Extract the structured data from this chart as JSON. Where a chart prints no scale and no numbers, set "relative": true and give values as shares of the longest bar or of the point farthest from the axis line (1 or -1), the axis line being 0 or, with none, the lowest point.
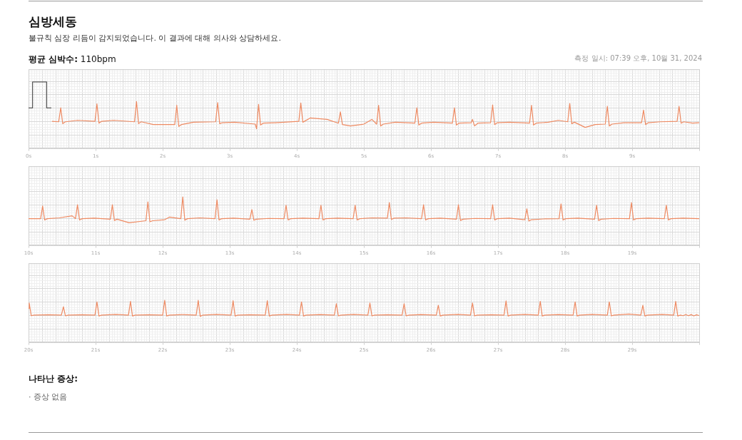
{
  "chart_data": [
    {
      "type": "line",
      "title": "심방세동",
      "subtitle": "불규칙 심장 리듬이 감지되었습니다. 이 결과에 대해 의사와 상담하세요.",
      "annotations": [
        "평균 심박수: 110bpm",
        "측정 일시: 07:39 오후, 10월 31, 2024"
      ],
      "relative": true,
      "grid": true,
      "xlim": [
        0,
        10
      ],
      "xticks": [
        {
          "value": 0,
          "label": "0s"
        },
        {
          "value": 1,
          "label": "1s"
        },
        {
          "value": 2,
          "label": "2s"
        },
        {
          "value": 3,
          "label": "3s"
        },
        {
          "value": 4,
          "label": "4s"
        },
        {
          "value": 5,
          "label": "5s"
        },
        {
          "value": 6,
          "label": "6s"
        },
        {
          "value": 7,
          "label": "7s"
        },
        {
          "value": 8,
          "label": "8s"
        },
        {
          "value": 9,
          "label": "9s"
        },
        {
          "value": 10,
          "label": null
        }
      ],
      "series": [
        {
          "color": "#555555",
          "x": [
            0,
            0.06,
            0.06,
            0.27,
            0.27,
            0.34
          ],
          "values": [
            0.445,
            0.445,
            1,
            1,
            0.445,
            0.445
          ]
        },
        {
          "color": "#ee8a62",
          "x": [
            0.35,
            0.45,
            0.48,
            0.51,
            0.55,
            0.73,
            0.99,
            1.02,
            1.05,
            1.09,
            1.27,
            1.58,
            1.61,
            1.64,
            1.68,
            1.86,
            2.18,
            2.21,
            2.24,
            2.28,
            2.46,
            2.79,
            2.82,
            2.85,
            2.89,
            3.07,
            3.38,
            3.4,
            3.43,
            3.46,
            3.5,
            3.68,
            4.03,
            4.06,
            4.09,
            4.2,
            4.45,
            4.62,
            4.65,
            4.68,
            4.8,
            5.0,
            5.12,
            5.19,
            5.22,
            5.25,
            5.29,
            5.47,
            5.76,
            5.79,
            5.82,
            5.86,
            6.04,
            6.32,
            6.35,
            6.38,
            6.42,
            6.6,
            6.62,
            6.65,
            6.7,
            6.89,
            6.92,
            6.95,
            6.99,
            7.17,
            7.47,
            7.5,
            7.53,
            7.57,
            7.75,
            7.9,
            8.04,
            8.07,
            8.1,
            8.14,
            8.3,
            8.45,
            8.6,
            8.63,
            8.66,
            8.7,
            8.88,
            9.14,
            9.17,
            9.2,
            9.24,
            9.42,
            9.67,
            9.7,
            9.73,
            9.77,
            9.9,
            10
          ],
          "values": [
            0.16,
            0.15,
            0.45,
            0.11,
            0.15,
            0.18,
            0.16,
            0.53,
            0.12,
            0.16,
            0.18,
            0.15,
            0.58,
            0.11,
            0.15,
            0.09,
            0.09,
            0.5,
            0.05,
            0.09,
            0.14,
            0.15,
            0.56,
            0.11,
            0.13,
            0.14,
            0.1,
            0,
            0.52,
            0.08,
            0.12,
            0.13,
            0.16,
            0.55,
            0.14,
            0.23,
            0.2,
            0.12,
            0.36,
            0.09,
            0.06,
            0.1,
            0.2,
            0.1,
            0.5,
            0.06,
            0.1,
            0.14,
            0.12,
            0.45,
            0.08,
            0.12,
            0.14,
            0.12,
            0.45,
            0.08,
            0.12,
            0.13,
            0.2,
            0.06,
            0.12,
            0.13,
            0.51,
            0.09,
            0.13,
            0.14,
            0.12,
            0.5,
            0.08,
            0.12,
            0.14,
            0.18,
            0.15,
            0.54,
            0.11,
            0.14,
            0.03,
            0.09,
            0.1,
            0.48,
            0.06,
            0.1,
            0.13,
            0.13,
            0.4,
            0.09,
            0.13,
            0.15,
            0.16,
            0.48,
            0.12,
            0.15,
            0.12,
            0.13
          ]
        }
      ]
    },
    {
      "type": "line",
      "relative": true,
      "grid": true,
      "xlim": [
        10,
        20
      ],
      "xticks": [
        {
          "value": 10,
          "label": "10s"
        },
        {
          "value": 11,
          "label": "11s"
        },
        {
          "value": 12,
          "label": "12s"
        },
        {
          "value": 13,
          "label": "13s"
        },
        {
          "value": 14,
          "label": "14s"
        },
        {
          "value": 15,
          "label": "15s"
        },
        {
          "value": 16,
          "label": "16s"
        },
        {
          "value": 17,
          "label": "17s"
        },
        {
          "value": 18,
          "label": "18s"
        },
        {
          "value": 19,
          "label": "19s"
        },
        {
          "value": 20,
          "label": null
        }
      ],
      "series": [
        {
          "color": "#ee8a62",
          "x": [
            10,
            10.18,
            10.21,
            10.24,
            10.28,
            10.46,
            10.65,
            10.7,
            10.73,
            10.76,
            10.8,
            10.98,
            11.22,
            11.25,
            11.28,
            11.32,
            11.5,
            11.75,
            11.78,
            11.81,
            11.85,
            12.03,
            12.1,
            12.27,
            12.3,
            12.33,
            12.37,
            12.55,
            12.78,
            12.81,
            12.84,
            12.88,
            13.06,
            13.3,
            13.33,
            13.36,
            13.4,
            13.58,
            13.81,
            13.84,
            13.87,
            13.91,
            14.09,
            14.33,
            14.36,
            14.39,
            14.43,
            14.61,
            14.84,
            14.87,
            14.9,
            14.94,
            15.12,
            15.35,
            15.38,
            15.41,
            15.45,
            15.63,
            15.86,
            15.89,
            15.92,
            15.96,
            16.14,
            16.38,
            16.41,
            16.44,
            16.48,
            16.66,
            16.89,
            16.92,
            16.95,
            16.99,
            17.17,
            17.4,
            17.43,
            17.46,
            17.5,
            17.68,
            17.91,
            17.94,
            17.97,
            18.01,
            18.19,
            18.44,
            18.47,
            18.5,
            18.54,
            18.72,
            18.96,
            18.99,
            19.02,
            19.06,
            19.24,
            19.48,
            19.51,
            19.54,
            19.58,
            19.76,
            20
          ],
          "values": [
            0.16,
            0.16,
            0.65,
            0.11,
            0.16,
            0.19,
            0.27,
            0.16,
            0.7,
            0.11,
            0.16,
            0.18,
            0.14,
            0.7,
            0.09,
            0.14,
            0,
            0.08,
            0.81,
            0.04,
            0.08,
            0.12,
            0.22,
            0.16,
            1,
            0.1,
            0.16,
            0.19,
            0.16,
            0.89,
            0.11,
            0.16,
            0.18,
            0.14,
            0.51,
            0.1,
            0.14,
            0.17,
            0.16,
            0.68,
            0.11,
            0.16,
            0.18,
            0.16,
            0.68,
            0.11,
            0.16,
            0.18,
            0.16,
            0.68,
            0.11,
            0.16,
            0.19,
            0.18,
            0.78,
            0.13,
            0.18,
            0.19,
            0.16,
            0.7,
            0.11,
            0.16,
            0.18,
            0.14,
            0.7,
            0.09,
            0.14,
            0.17,
            0.16,
            0.7,
            0.11,
            0.16,
            0.18,
            0.12,
            0.54,
            0.07,
            0.12,
            0.15,
            0.16,
            0.73,
            0.11,
            0.16,
            0.18,
            0.14,
            0.68,
            0.09,
            0.14,
            0.17,
            0.16,
            0.78,
            0.11,
            0.16,
            0.18,
            0.16,
            0.68,
            0.11,
            0.16,
            0.18,
            0.16
          ]
        }
      ]
    },
    {
      "type": "line",
      "relative": true,
      "grid": true,
      "xlim": [
        20,
        30
      ],
      "annotations": [
        "나타난 증상:",
        "· 증상 없음"
      ],
      "xticks": [
        {
          "value": 20,
          "label": "20s"
        },
        {
          "value": 21,
          "label": "21s"
        },
        {
          "value": 22,
          "label": "22s"
        },
        {
          "value": 23,
          "label": "23s"
        },
        {
          "value": 24,
          "label": "24s"
        },
        {
          "value": 25,
          "label": "25s"
        },
        {
          "value": 26,
          "label": "26s"
        },
        {
          "value": 27,
          "label": "27s"
        },
        {
          "value": 28,
          "label": "28s"
        },
        {
          "value": 29,
          "label": "29s"
        },
        {
          "value": 30,
          "label": null
        }
      ],
      "series": [
        {
          "color": "#ee8a62",
          "x": [
            20,
            20.01,
            20.04,
            20.08,
            20.3,
            20.49,
            20.52,
            20.55,
            20.59,
            20.8,
            20.99,
            21.02,
            21.05,
            21.09,
            21.3,
            21.49,
            21.52,
            21.55,
            21.59,
            21.8,
            22.0,
            22.03,
            22.06,
            22.1,
            22.3,
            22.5,
            22.53,
            22.56,
            22.6,
            22.8,
            23.02,
            23.05,
            23.08,
            23.12,
            23.3,
            23.53,
            23.56,
            23.59,
            23.63,
            23.85,
            24.04,
            24.07,
            24.1,
            24.14,
            24.35,
            24.56,
            24.59,
            24.62,
            24.66,
            24.85,
            25.06,
            25.09,
            25.12,
            25.16,
            25.35,
            25.57,
            25.6,
            25.63,
            25.67,
            25.85,
            26.08,
            26.11,
            26.14,
            26.18,
            26.4,
            26.59,
            26.62,
            26.65,
            26.69,
            26.9,
            27.09,
            27.12,
            27.15,
            27.19,
            27.4,
            27.6,
            27.63,
            27.66,
            27.7,
            27.9,
            28.12,
            28.15,
            28.18,
            28.22,
            28.4,
            28.63,
            28.66,
            28.69,
            28.73,
            28.95,
            29.13,
            29.16,
            29.19,
            29.23,
            29.45,
            29.62,
            29.65,
            29.68,
            29.72,
            29.76,
            29.8,
            29.84,
            29.88,
            29.92,
            29.96,
            30
          ],
          "values": [
            0.5,
            0.83,
            0.04,
            0.08,
            0.1,
            0.08,
            0.6,
            0.03,
            0.08,
            0.1,
            0.08,
            0.9,
            0.02,
            0.08,
            0.12,
            0.08,
            0.93,
            0.02,
            0.08,
            0.1,
            0.08,
            1,
            0.02,
            0.08,
            0.11,
            0.08,
            1,
            0,
            0.08,
            0.12,
            0.08,
            0.97,
            0.02,
            0.08,
            0.1,
            0.08,
            0.97,
            0.02,
            0.08,
            0.12,
            0.08,
            0.9,
            0.02,
            0.08,
            0.11,
            0.08,
            0.79,
            0.03,
            0.08,
            0.12,
            0.08,
            0.83,
            0.03,
            0.08,
            0.1,
            0.08,
            0.79,
            0.03,
            0.08,
            0.11,
            0.08,
            0.69,
            0.02,
            0.08,
            0.12,
            0.08,
            0.83,
            0.03,
            0.08,
            0.1,
            0.08,
            0.96,
            0.02,
            0.08,
            0.12,
            0.08,
            0.93,
            0.02,
            0.08,
            0.11,
            0.08,
            0.9,
            0.02,
            0.08,
            0.12,
            0.08,
            0.9,
            0.03,
            0.08,
            0.14,
            0.08,
            0.69,
            0.02,
            0.08,
            0.12,
            0.08,
            0.93,
            0.02,
            0.08,
            0.04,
            0.12,
            0.04,
            0.11,
            0.03,
            0.1,
            0.05
          ]
        }
      ]
    }
  ]
}
